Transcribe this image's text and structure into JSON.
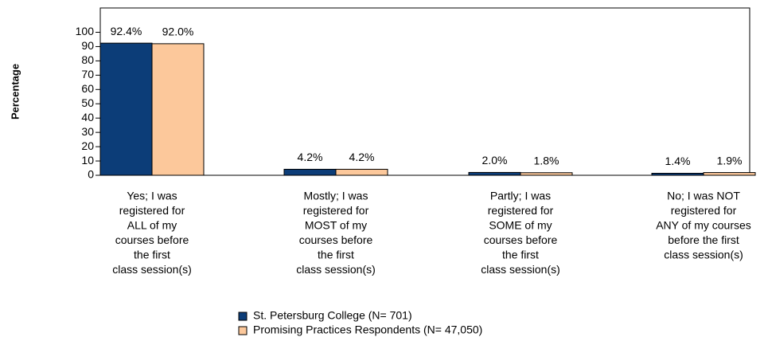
{
  "chart_data": {
    "type": "bar",
    "y_label": "Percentage",
    "categories": [
      [
        "Yes; I was",
        "registered for",
        "ALL of my",
        "courses before",
        "the first",
        "class session(s)"
      ],
      [
        "Mostly; I was",
        "registered for",
        "MOST of my",
        "courses before",
        "the first",
        "class session(s)"
      ],
      [
        "Partly; I was",
        "registered for",
        "SOME of my",
        "courses before",
        "the first",
        "class session(s)"
      ],
      [
        "No; I was NOT",
        "registered for",
        "ANY of my courses",
        "before the first",
        "class session(s)"
      ]
    ],
    "series": [
      {
        "name": "St. Petersburg College (N= 701)",
        "color": "#0c3d78",
        "values": [
          92.4,
          4.2,
          2.0,
          1.4
        ],
        "value_labels": [
          "92.4%",
          "4.2%",
          "2.0%",
          "1.4%"
        ]
      },
      {
        "name": "Promising Practices Respondents (N= 47,050)",
        "color": "#fcc89b",
        "values": [
          92.0,
          4.2,
          1.8,
          1.9
        ],
        "value_labels": [
          "92.0%",
          "4.2%",
          "1.8%",
          "1.9%"
        ]
      }
    ],
    "ylim": [
      0,
      117
    ],
    "yticks": [
      0,
      10,
      20,
      30,
      40,
      50,
      60,
      70,
      80,
      90,
      100
    ]
  }
}
